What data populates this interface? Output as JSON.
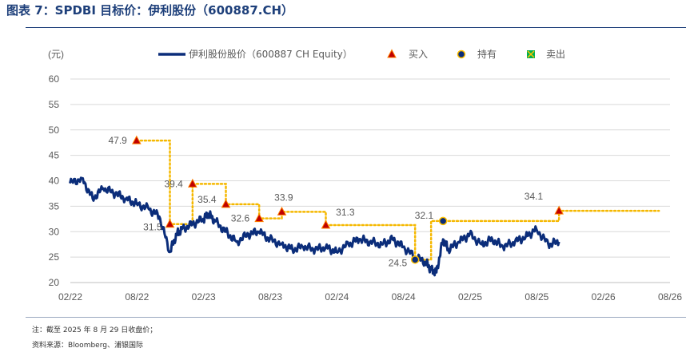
{
  "figure": {
    "title": "图表 7：SPDBI 目标价：伊利股份（600887.CH）",
    "note": "注：截至 2025 年 8 月 29 日收盘价；",
    "source": "资料来源：Bloomberg、浦银国际"
  },
  "colors": {
    "price_line": "#0b2d7a",
    "target_line": "#f5b800",
    "buy_marker": "#c00000",
    "buy_marker_fill": "#ff7f00",
    "hold_marker": "#0b2d7a",
    "hold_marker_fill": "#ffc000",
    "sell_marker": "#00b050",
    "title": "#1d3f7a"
  },
  "chart_data": {
    "type": "line",
    "ylabel": "(元)",
    "ylim": [
      20,
      60
    ],
    "yticks": [
      20,
      25,
      30,
      35,
      40,
      45,
      50,
      55,
      60
    ],
    "xticks": [
      "02/22",
      "08/22",
      "02/23",
      "08/23",
      "02/24",
      "08/24",
      "02/25",
      "08/25",
      "02/26",
      "08/26"
    ],
    "x_range": [
      "2022-02",
      "2026-08"
    ],
    "grid": "horizontal",
    "legend_position": "top",
    "legend": [
      {
        "name": "伊利股份股价（600887 CH Equity）",
        "kind": "line"
      },
      {
        "name": "买入",
        "kind": "buy"
      },
      {
        "name": "持有",
        "kind": "hold"
      },
      {
        "name": "卖出",
        "kind": "sell"
      }
    ],
    "series": [
      {
        "name": "伊利股份股价（600887 CH Equity）",
        "x": [
          2022.08,
          2022.17,
          2022.25,
          2022.33,
          2022.42,
          2022.5,
          2022.58,
          2022.67,
          2022.75,
          2022.83,
          2022.88,
          2022.92,
          2023.0,
          2023.08,
          2023.12,
          2023.17,
          2023.25,
          2023.33,
          2023.42,
          2023.5,
          2023.58,
          2023.67,
          2023.75,
          2023.83,
          2023.92,
          2024.0,
          2024.08,
          2024.17,
          2024.25,
          2024.33,
          2024.42,
          2024.5,
          2024.58,
          2024.67,
          2024.75,
          2024.79,
          2024.83,
          2024.88,
          2024.92,
          2025.0,
          2025.08,
          2025.17,
          2025.25,
          2025.33,
          2025.42,
          2025.5,
          2025.58,
          2025.67,
          2025.75
        ],
        "values": [
          39.5,
          40.5,
          36.5,
          38.5,
          37.5,
          36.5,
          35.5,
          34.5,
          33.0,
          26.0,
          29.5,
          30.5,
          31.5,
          32.5,
          33.5,
          32.0,
          30.0,
          28.0,
          29.5,
          30.0,
          28.5,
          27.5,
          26.5,
          27.0,
          26.5,
          27.0,
          26.0,
          27.5,
          28.5,
          28.0,
          27.5,
          28.5,
          27.0,
          25.0,
          24.0,
          22.5,
          22.0,
          28.5,
          26.5,
          28.0,
          29.5,
          27.5,
          28.5,
          27.0,
          28.0,
          29.0,
          30.5,
          27.5,
          28.0
        ]
      },
      {
        "name": "target_price",
        "x": [
          2022.58,
          2022.83,
          2023.0,
          2023.25,
          2023.5,
          2023.67,
          2024.0,
          2024.67,
          2024.79,
          2025.75,
          2026.5
        ],
        "values": [
          47.9,
          31.5,
          39.4,
          35.4,
          32.6,
          33.9,
          31.3,
          24.5,
          32.1,
          34.1,
          34.1
        ]
      }
    ],
    "ratings": [
      {
        "x": 2022.58,
        "value": 47.9,
        "label": "47.9",
        "rating": "buy"
      },
      {
        "x": 2022.83,
        "value": 31.5,
        "label": "31.5",
        "rating": "buy"
      },
      {
        "x": 2023.0,
        "value": 39.4,
        "label": "39.4",
        "rating": "buy"
      },
      {
        "x": 2023.25,
        "value": 35.4,
        "label": "35.4",
        "rating": "buy"
      },
      {
        "x": 2023.5,
        "value": 32.6,
        "label": "32.6",
        "rating": "buy"
      },
      {
        "x": 2023.67,
        "value": 33.9,
        "label": "33.9",
        "rating": "buy"
      },
      {
        "x": 2024.0,
        "value": 31.3,
        "label": "31.3",
        "rating": "buy"
      },
      {
        "x": 2024.67,
        "value": 24.5,
        "label": "24.5",
        "rating": "hold"
      },
      {
        "x": 2024.88,
        "value": 32.1,
        "label": "32.1",
        "rating": "hold"
      },
      {
        "x": 2025.75,
        "value": 34.1,
        "label": "34.1",
        "rating": "buy"
      }
    ]
  }
}
